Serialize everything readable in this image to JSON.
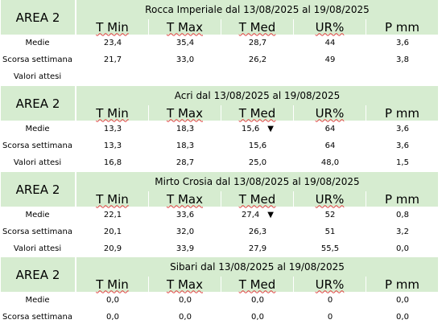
{
  "columns": [
    "T Min",
    "T Max",
    "T Med",
    "UR%",
    "P mm"
  ],
  "row_labels": {
    "medie": "Medie",
    "scorsa": "Scorsa settimana",
    "attesi": "Valori attesi"
  },
  "arrow_glyph": "▼",
  "sections": [
    {
      "area": "AREA 2",
      "title": "Rocca Imperiale  dal 13/08/2025 al 19/08/2025",
      "medie": [
        "23,4",
        "35,4",
        "28,7",
        "44",
        "3,6"
      ],
      "scorsa": [
        "21,7",
        "33,0",
        "26,2",
        "49",
        "3,8"
      ],
      "attesi": [
        "",
        "",
        "",
        "",
        ""
      ]
    },
    {
      "area": "AREA 2",
      "title": "Acri dal 13/08/2025 al 19/08/2025",
      "medie": [
        "13,3",
        "18,3",
        "15,6",
        "64",
        "3,6"
      ],
      "scorsa": [
        "13,3",
        "18,3",
        "15,6",
        "64",
        "3,6"
      ],
      "attesi": [
        "16,8",
        "28,7",
        "25,0",
        "48,0",
        "1,5"
      ],
      "medie_tmed_arrow": true
    },
    {
      "area": "AREA 2",
      "title": "Mirto Crosia dal 13/08/2025 al 19/08/2025",
      "medie": [
        "22,1",
        "33,6",
        "27,4",
        "52",
        "0,8"
      ],
      "scorsa": [
        "20,1",
        "32,0",
        "26,3",
        "51",
        "3,2"
      ],
      "attesi": [
        "20,9",
        "33,9",
        "27,9",
        "55,5",
        "0,0"
      ],
      "medie_tmed_arrow": true
    },
    {
      "area": "AREA 2",
      "title": "Sibari dal 13/08/2025 al 19/08/2025",
      "medie": [
        "0,0",
        "0,0",
        "0,0",
        "0",
        "0,0"
      ],
      "scorsa": [
        "0,0",
        "0,0",
        "0,0",
        "0",
        "0,0"
      ]
    }
  ]
}
